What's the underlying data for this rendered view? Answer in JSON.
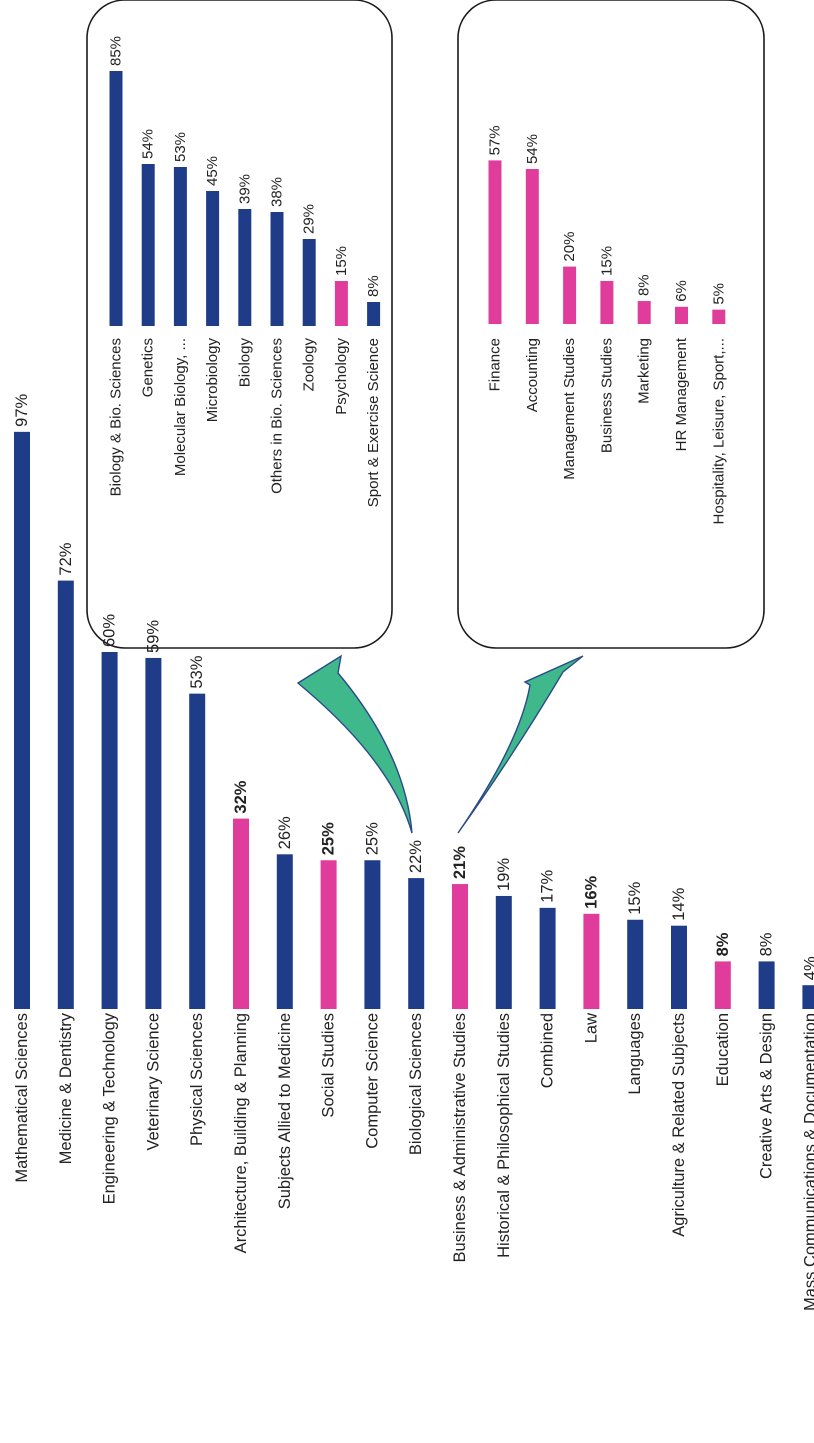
{
  "colors": {
    "blue": "#1f3c88",
    "pink": "#e03c9c",
    "arrow_fill": "#3fb98c",
    "arrow_stroke": "#2a4a8a"
  },
  "chart_data": [
    {
      "type": "bar",
      "orientation": "horizontal",
      "value_unit": "%",
      "categories": [
        "Mathematical Sciences",
        "Medicine & Dentistry",
        "Engineering & Technology",
        "Veterinary Science",
        "Physical Sciences",
        "Architecture, Building & Planning",
        "Subjects Allied to Medicine",
        "Social Studies",
        "Computer Science",
        "Biological Sciences",
        "Business & Administrative Studies",
        "Historical & Philosophical Studies",
        "Combined",
        "Law",
        "Languages",
        "Agriculture & Related Subjects",
        "Education",
        "Creative Arts & Design",
        "Mass Communications & Documentation"
      ],
      "values": [
        97,
        72,
        60,
        59,
        53,
        32,
        26,
        25,
        25,
        22,
        21,
        19,
        17,
        16,
        15,
        14,
        8,
        8,
        4
      ],
      "value_labels": [
        "97%",
        "72%",
        "60%",
        "59%",
        "53%",
        "32%",
        "26%",
        "25%",
        "25%",
        "22%",
        "21%",
        "19%",
        "17%",
        "16%",
        "15%",
        "14%",
        "8%",
        "8%",
        "4%"
      ],
      "highlight": [
        false,
        false,
        false,
        false,
        false,
        true,
        false,
        true,
        false,
        false,
        true,
        false,
        false,
        true,
        false,
        false,
        true,
        false,
        false
      ],
      "xlim": [
        0,
        100
      ]
    },
    {
      "type": "bar",
      "orientation": "horizontal",
      "value_unit": "%",
      "expands": "Biological Sciences",
      "categories": [
        "Biology & Bio. Sciences",
        "Genetics",
        "Molecular Biology, ...",
        "Microbiology",
        "Biology",
        "Others in Bio. Sciences",
        "Zoology",
        "Psychology",
        "Sport & Exercise Science"
      ],
      "values": [
        85,
        54,
        53,
        45,
        39,
        38,
        29,
        15,
        8
      ],
      "value_labels": [
        "85%",
        "54%",
        "53%",
        "45%",
        "39%",
        "38%",
        "29%",
        "15%",
        "8%"
      ],
      "highlight": [
        false,
        false,
        false,
        false,
        false,
        false,
        false,
        true,
        false
      ],
      "xlim": [
        0,
        100
      ]
    },
    {
      "type": "bar",
      "orientation": "horizontal",
      "value_unit": "%",
      "expands": "Business & Administrative Studies",
      "categories": [
        "Finance",
        "Accounting",
        "Management Studies",
        "Business Studies",
        "Marketing",
        "HR Management",
        "Hospitality, Leisure, Sport,..."
      ],
      "values": [
        57,
        54,
        20,
        15,
        8,
        6,
        5
      ],
      "value_labels": [
        "57%",
        "54%",
        "20%",
        "15%",
        "8%",
        "6%",
        "5%"
      ],
      "highlight": [
        true,
        true,
        true,
        true,
        true,
        true,
        true
      ],
      "xlim": [
        0,
        100
      ]
    }
  ]
}
